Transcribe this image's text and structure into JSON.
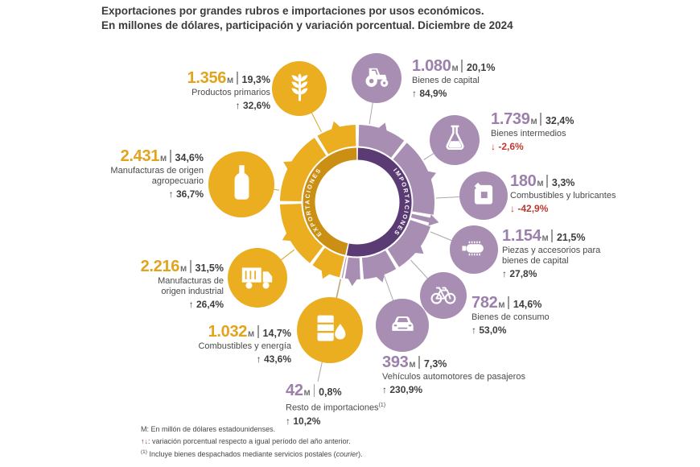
{
  "title": {
    "line1": "Exportaciones por grandes rubros e importaciones por usos económicos.",
    "line2": "En millones de dólares, participación y variación porcentual. Diciembre de 2024"
  },
  "donut": {
    "exports_label": "EXPORTACIONES",
    "imports_label": "IMPORTACIONES"
  },
  "colors": {
    "export": "#EAAE20",
    "export_dark": "#CB8F13",
    "export_line": "#D9A21E",
    "import": "#A88EB3",
    "import_dark": "#5B3B74",
    "import_line": "#A9A9A9",
    "value_export": "#E2A31D",
    "value_import": "#9B80AC",
    "negative": "#BE3A31",
    "text": "#3E3E3E"
  },
  "items": [
    {
      "id": "productos-primarios",
      "side": "export",
      "value": "1.356",
      "unit": "M",
      "share": "19,3%",
      "label": "Productos primarios",
      "arrow": "↑",
      "variation": "32,6%",
      "direction": "up",
      "icon": "wheat-icon"
    },
    {
      "id": "manufacturas-agropecuario",
      "side": "export",
      "value": "2.431",
      "unit": "M",
      "share": "34,6%",
      "label": "Manufacturas de origen agropecuario",
      "arrow": "↑",
      "variation": "36,7%",
      "direction": "up",
      "icon": "bottle-icon"
    },
    {
      "id": "manufacturas-industrial",
      "side": "export",
      "value": "2.216",
      "unit": "M",
      "share": "31,5%",
      "label": "Manufacturas de origen industrial",
      "arrow": "↑",
      "variation": "26,4%",
      "direction": "up",
      "icon": "truck-icon"
    },
    {
      "id": "combustibles-energia",
      "side": "export",
      "value": "1.032",
      "unit": "M",
      "share": "14,7%",
      "label": "Combustibles y energía",
      "arrow": "↑",
      "variation": "43,6%",
      "direction": "up",
      "icon": "oil-barrel-drop-icon"
    },
    {
      "id": "bienes-capital",
      "side": "import",
      "value": "1.080",
      "unit": "M",
      "share": "20,1%",
      "label": "Bienes de capital",
      "arrow": "↑",
      "variation": "84,9%",
      "direction": "up",
      "icon": "tractor-icon"
    },
    {
      "id": "bienes-intermedios",
      "side": "import",
      "value": "1.739",
      "unit": "M",
      "share": "32,4%",
      "label": "Bienes intermedios",
      "arrow": "↓",
      "variation": "-2,6%",
      "direction": "down",
      "icon": "flask-icon"
    },
    {
      "id": "combustibles-lubricantes",
      "side": "import",
      "value": "180",
      "unit": "M",
      "share": "3,3%",
      "label": "Combustibles y lubricantes",
      "arrow": "↓",
      "variation": "-42,9%",
      "direction": "down",
      "icon": "jerrycan-icon"
    },
    {
      "id": "piezas-accesorios",
      "side": "import",
      "value": "1.154",
      "unit": "M",
      "share": "21,5%",
      "label": "Piezas y accesorios para bienes de capital",
      "arrow": "↑",
      "variation": "27,8%",
      "direction": "up",
      "icon": "chip-icon"
    },
    {
      "id": "bienes-consumo",
      "side": "import",
      "value": "782",
      "unit": "M",
      "share": "14,6%",
      "label": "Bienes de consumo",
      "arrow": "↑",
      "variation": "53,0%",
      "direction": "up",
      "icon": "bicycle-icon"
    },
    {
      "id": "vehiculos-pasajeros",
      "side": "import",
      "value": "393",
      "unit": "M",
      "share": "7,3%",
      "label": "Vehículos automotores de pasajeros",
      "arrow": "↑",
      "variation": "230,9%",
      "direction": "up",
      "icon": "car-icon"
    },
    {
      "id": "resto-importaciones",
      "side": "import",
      "value": "42",
      "unit": "M",
      "share": "0,8%",
      "label": "Resto de importaciones",
      "label_sup": "(1)",
      "arrow": "↑",
      "variation": "10,2%",
      "direction": "up",
      "icon": null
    }
  ],
  "footnotes": {
    "line1": "M: En millón de dólares estadounidenses.",
    "line2_up": "↑",
    "line2_down": "↓",
    "line2_text": ": variación porcentual respecto a igual período del año anterior.",
    "line3_sup": "(1)",
    "line3_text": " Incluye bienes despachados mediante servicios postales (",
    "line3_italic": "courier",
    "line3_end": ")."
  },
  "chart_data": {
    "type": "pie",
    "title": "Exportaciones por grandes rubros e importaciones por usos económicos. En millones de dólares, participación y variación porcentual. Diciembre de 2024",
    "units": "millones de dólares estadounidenses",
    "series": [
      {
        "name": "Exportaciones",
        "categories": [
          "Productos primarios",
          "Manufacturas de origen agropecuario",
          "Manufacturas de origen industrial",
          "Combustibles y energía"
        ],
        "values": [
          1356,
          2431,
          2216,
          1032
        ],
        "shares_pct": [
          19.3,
          34.6,
          31.5,
          14.7
        ],
        "variation_pct": [
          32.6,
          36.7,
          26.4,
          43.6
        ]
      },
      {
        "name": "Importaciones",
        "categories": [
          "Bienes de capital",
          "Bienes intermedios",
          "Combustibles y lubricantes",
          "Piezas y accesorios para bienes de capital",
          "Bienes de consumo",
          "Vehículos automotores de pasajeros",
          "Resto de importaciones"
        ],
        "values": [
          1080,
          1739,
          180,
          1154,
          782,
          393,
          42
        ],
        "shares_pct": [
          20.1,
          32.4,
          3.3,
          21.5,
          14.6,
          7.3,
          0.8
        ],
        "variation_pct": [
          84.9,
          -2.6,
          -42.9,
          27.8,
          53.0,
          230.9,
          10.2
        ]
      }
    ]
  }
}
